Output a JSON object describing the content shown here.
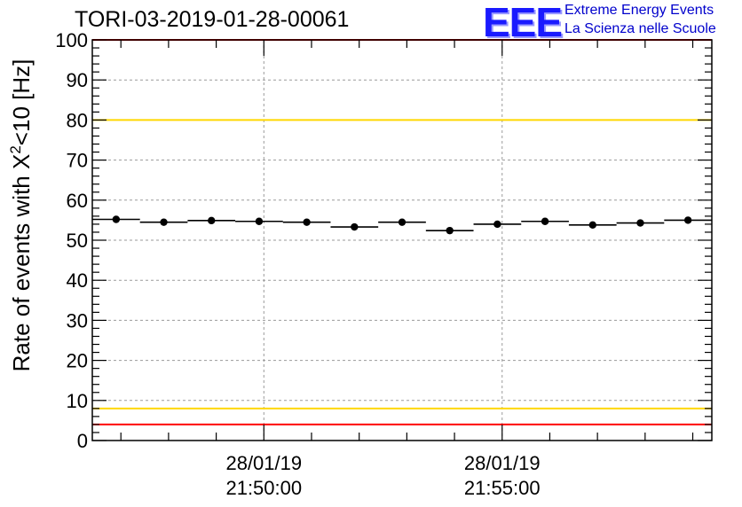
{
  "header": {
    "title": "TORI-03-2019-01-28-00061",
    "logo_text": "EEE",
    "logo_line1": "Extreme Energy Events",
    "logo_line2": "La Scienza nelle Scuole"
  },
  "colors": {
    "red_line": "#ff0000",
    "yellow_line": "#ffd700",
    "data": "#000000",
    "grid": "#9a9a9a",
    "logo": "#1a1aff"
  },
  "chart_data": {
    "type": "scatter",
    "title": "TORI-03-2019-01-28-00061",
    "ylabel_main": "Rate of events with X",
    "ylabel_sup": "2",
    "ylabel_tail": "<10 [Hz]",
    "xlabel": "",
    "ylim": [
      0,
      100
    ],
    "yticks": [
      0,
      10,
      20,
      30,
      40,
      50,
      60,
      70,
      80,
      90,
      100
    ],
    "xlim": [
      0,
      13
    ],
    "xticks": [
      {
        "x": 3.6,
        "date": "28/01/19",
        "time": "21:50:00"
      },
      {
        "x": 8.6,
        "date": "28/01/19",
        "time": "21:55:00"
      }
    ],
    "bins_x": [
      0.5,
      1.5,
      2.5,
      3.5,
      4.5,
      5.5,
      6.5,
      7.5,
      8.5,
      9.5,
      10.5,
      11.5,
      12.5
    ],
    "values": [
      55.2,
      54.5,
      54.9,
      54.7,
      54.5,
      53.3,
      54.5,
      52.4,
      54.0,
      54.7,
      53.8,
      54.3,
      55.0
    ],
    "hlines": [
      {
        "y": 100,
        "color": "red"
      },
      {
        "y": 80,
        "color": "yellow"
      },
      {
        "y": 8,
        "color": "yellow"
      },
      {
        "y": 4,
        "color": "red"
      }
    ],
    "grid": true
  }
}
